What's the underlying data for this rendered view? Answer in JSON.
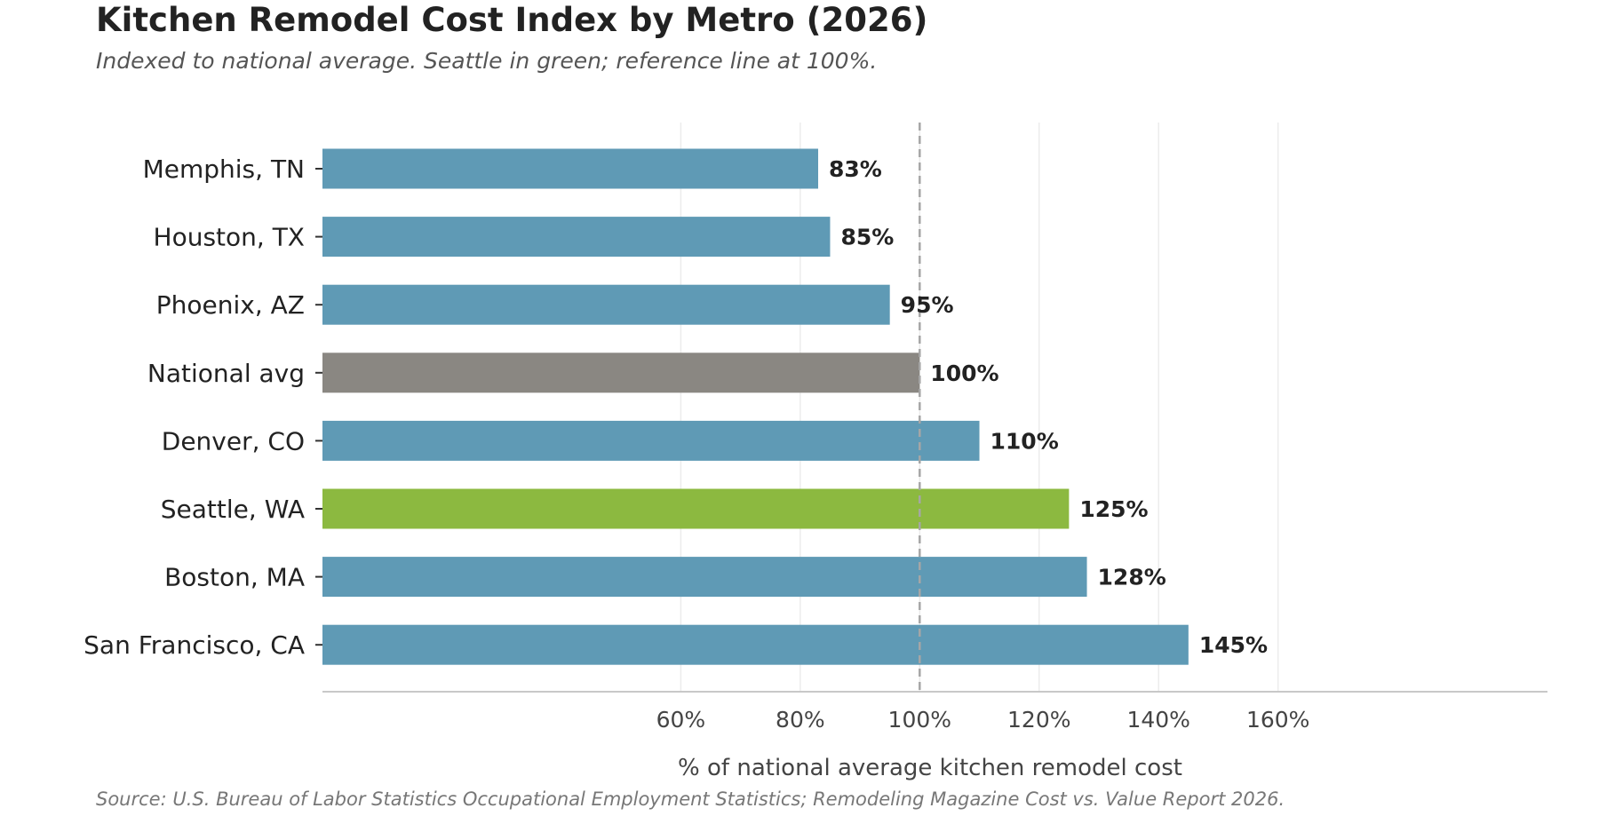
{
  "chart_data": {
    "type": "bar",
    "orientation": "horizontal",
    "title": "Kitchen Remodel Cost Index by Metro (2026)",
    "subtitle": "Indexed to national average. Seattle in green; reference line at 100%.",
    "xlabel": "% of national average kitchen remodel cost",
    "ylabel": "",
    "source": "Source: U.S. Bureau of Labor Statistics Occupational Employment Statistics; Remodeling Magazine Cost vs. Value Report 2026.",
    "xlim": [
      0,
      162
    ],
    "xticks": [
      60,
      80,
      100,
      120,
      140,
      160
    ],
    "xtick_labels": [
      "60%",
      "80%",
      "100%",
      "120%",
      "140%",
      "160%"
    ],
    "reference_line": 100,
    "grid": "vertical",
    "legend": "none",
    "categories": [
      "Memphis, TN",
      "Houston, TX",
      "Phoenix, AZ",
      "National avg",
      "Denver, CO",
      "Seattle, WA",
      "Boston, MA",
      "San Francisco, CA"
    ],
    "values": [
      83,
      85,
      95,
      100,
      110,
      125,
      128,
      145
    ],
    "value_labels": [
      "83%",
      "85%",
      "95%",
      "100%",
      "110%",
      "125%",
      "128%",
      "145%"
    ],
    "colors": {
      "default": "#5f9ab5",
      "national": "#8a8782",
      "highlight": "#8cb940",
      "reference_line": "#a6a6a6",
      "grid": "#ececec",
      "axis": "#c8c8c8"
    },
    "bar_colors": [
      "default",
      "default",
      "default",
      "national",
      "default",
      "highlight",
      "default",
      "default"
    ]
  }
}
